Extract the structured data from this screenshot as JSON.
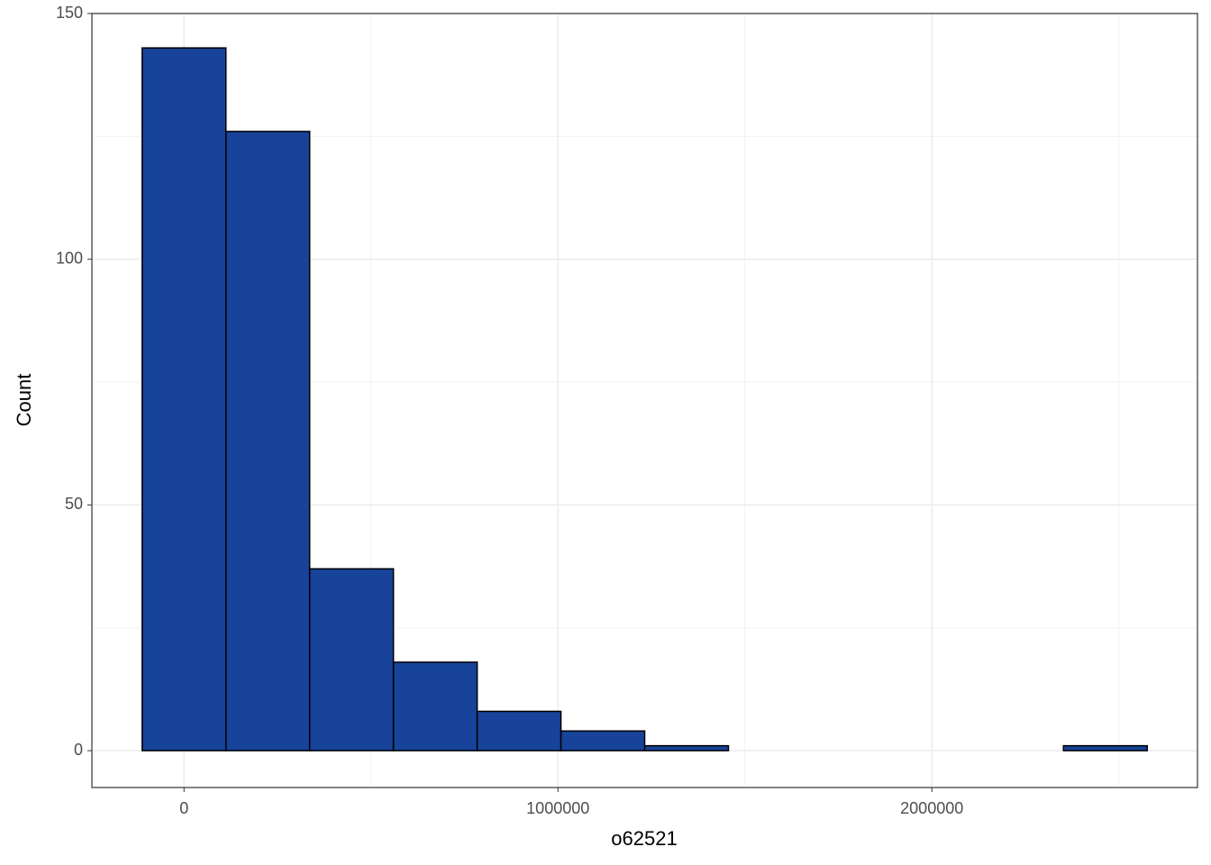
{
  "chart_data": {
    "type": "histogram",
    "x_label": "o62521",
    "y_label": "Count",
    "bins": [
      -112000,
      112000,
      336000,
      560000,
      784000,
      1008000,
      1232000,
      1456000,
      1680000,
      1904000,
      2128000,
      2352000,
      2576000
    ],
    "values": [
      143,
      126,
      37,
      18,
      8,
      4,
      1,
      0,
      0,
      0,
      0,
      1
    ],
    "color": "#17439a",
    "xlim": [
      -246400,
      2710400
    ],
    "ylim": [
      -7.5,
      150
    ],
    "xticks": [
      0,
      1000000,
      2000000
    ],
    "yticks": [
      0,
      50,
      100,
      150
    ],
    "xminor": [
      500000,
      1500000,
      2500000
    ],
    "yminor": [
      25,
      75,
      125
    ],
    "grid": true
  }
}
